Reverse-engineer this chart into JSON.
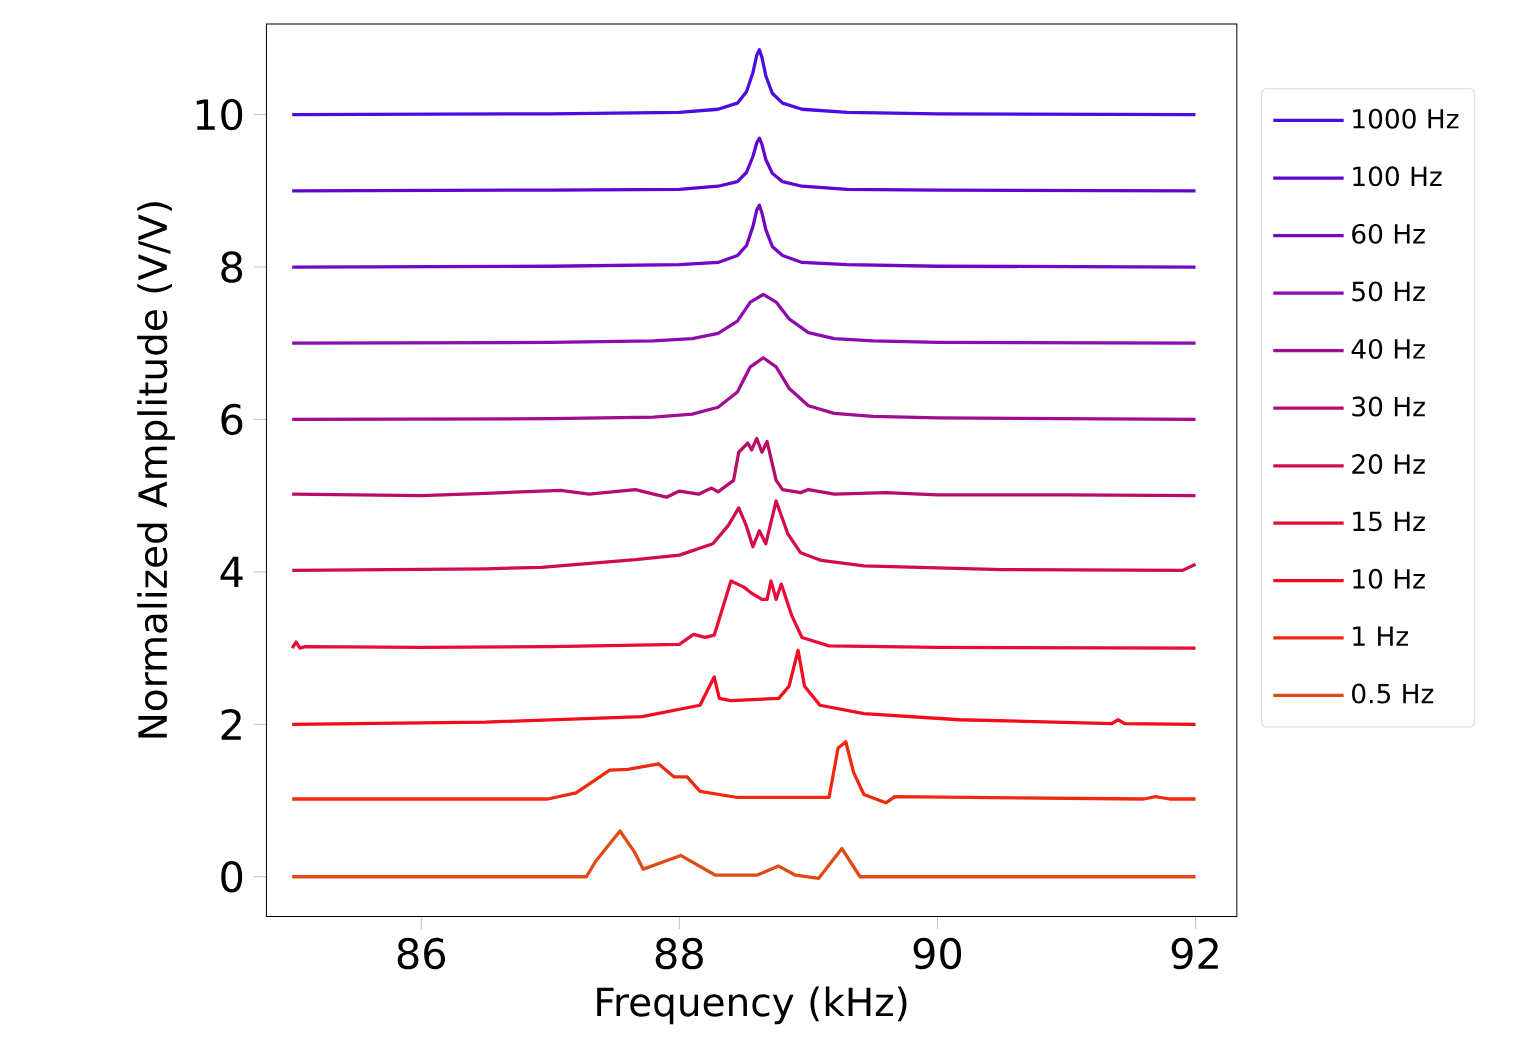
{
  "chart_data": {
    "type": "line",
    "xlabel": "Frequency (kHz)",
    "ylabel": "Normalized Amplitude (V/V)",
    "xlim": [
      84.8,
      92.32
    ],
    "ylim": [
      -0.52,
      11.19
    ],
    "xticks": [
      86,
      88,
      90,
      92
    ],
    "yticks": [
      0,
      2,
      4,
      6,
      8,
      10
    ],
    "legend": "right",
    "grid": false,
    "series": [
      {
        "name": "1000 Hz",
        "color": "#4a0ce0",
        "x": [
          85,
          87,
          88,
          88.3,
          88.45,
          88.52,
          88.57,
          88.6,
          88.62,
          88.64,
          88.67,
          88.72,
          88.8,
          88.95,
          89.3,
          90,
          92
        ],
        "values": [
          10,
          10.01,
          10.03,
          10.07,
          10.15,
          10.3,
          10.55,
          10.78,
          10.85,
          10.75,
          10.51,
          10.28,
          10.15,
          10.07,
          10.03,
          10.01,
          10
        ]
      },
      {
        "name": "100 Hz",
        "color": "#6204d0",
        "x": [
          85,
          87,
          88,
          88.3,
          88.45,
          88.52,
          88.57,
          88.6,
          88.62,
          88.64,
          88.67,
          88.72,
          88.8,
          88.95,
          89.3,
          90,
          92
        ],
        "values": [
          9,
          9.01,
          9.02,
          9.06,
          9.12,
          9.24,
          9.45,
          9.63,
          9.69,
          9.61,
          9.41,
          9.23,
          9.12,
          9.06,
          9.02,
          9.01,
          9
        ]
      },
      {
        "name": "60 Hz",
        "color": "#7406c4",
        "x": [
          85,
          87,
          88,
          88.3,
          88.45,
          88.52,
          88.57,
          88.6,
          88.62,
          88.64,
          88.67,
          88.72,
          88.8,
          88.95,
          89.3,
          90,
          92
        ],
        "values": [
          8,
          8.01,
          8.03,
          8.06,
          8.15,
          8.28,
          8.53,
          8.75,
          8.81,
          8.71,
          8.49,
          8.27,
          8.15,
          8.06,
          8.03,
          8.01,
          8
        ]
      },
      {
        "name": "50 Hz",
        "color": "#8c0cb0",
        "x": [
          85,
          87,
          87.8,
          88.1,
          88.3,
          88.45,
          88.55,
          88.65,
          88.75,
          88.85,
          89.0,
          89.2,
          89.5,
          90,
          92
        ],
        "values": [
          7,
          7.01,
          7.03,
          7.06,
          7.13,
          7.29,
          7.54,
          7.64,
          7.54,
          7.32,
          7.14,
          7.06,
          7.03,
          7.01,
          7
        ]
      },
      {
        "name": "40 Hz",
        "color": "#a00c92",
        "x": [
          85,
          87,
          87.8,
          88.1,
          88.3,
          88.45,
          88.55,
          88.65,
          88.75,
          88.85,
          89.0,
          89.2,
          89.5,
          90,
          92
        ],
        "values": [
          6,
          6.01,
          6.03,
          6.07,
          6.16,
          6.36,
          6.69,
          6.81,
          6.69,
          6.41,
          6.18,
          6.08,
          6.04,
          6.02,
          6
        ]
      },
      {
        "name": "30 Hz",
        "color": "#b80c6a",
        "x": [
          85,
          86,
          86.5,
          87.08,
          87.3,
          87.66,
          87.8,
          87.9,
          88.0,
          88.15,
          88.2,
          88.25,
          88.3,
          88.42,
          88.46,
          88.53,
          88.56,
          88.6,
          88.64,
          88.68,
          88.75,
          88.8,
          88.94,
          89.0,
          89.2,
          89.6,
          90,
          91,
          92
        ],
        "values": [
          5.02,
          5.0,
          5.03,
          5.07,
          5.02,
          5.08,
          5.02,
          4.98,
          5.06,
          5.02,
          5.06,
          5.1,
          5.05,
          5.2,
          5.57,
          5.69,
          5.6,
          5.75,
          5.57,
          5.71,
          5.2,
          5.08,
          5.04,
          5.08,
          5.02,
          5.04,
          5.01,
          5.01,
          5.0
        ]
      },
      {
        "name": "20 Hz",
        "color": "#d20c4c",
        "x": [
          85,
          86.5,
          86.93,
          87.66,
          88.0,
          88.26,
          88.38,
          88.46,
          88.52,
          88.57,
          88.62,
          88.67,
          88.75,
          88.84,
          88.94,
          89.1,
          89.43,
          90.5,
          91.9,
          92
        ],
        "values": [
          4.02,
          4.04,
          4.06,
          4.16,
          4.22,
          4.37,
          4.61,
          4.84,
          4.6,
          4.33,
          4.54,
          4.37,
          4.93,
          4.5,
          4.25,
          4.15,
          4.08,
          4.03,
          4.02,
          4.1
        ]
      },
      {
        "name": "15 Hz",
        "color": "#e80c38",
        "x": [
          85,
          85.03,
          85.06,
          85.1,
          86,
          87,
          88,
          88.11,
          88.2,
          88.27,
          88.4,
          88.5,
          88.56,
          88.64,
          88.68,
          88.71,
          88.75,
          88.79,
          88.87,
          88.95,
          89.16,
          90,
          92
        ],
        "values": [
          3.0,
          3.08,
          3.0,
          3.02,
          3.01,
          3.02,
          3.05,
          3.18,
          3.14,
          3.17,
          3.88,
          3.8,
          3.72,
          3.64,
          3.64,
          3.88,
          3.64,
          3.84,
          3.43,
          3.14,
          3.03,
          3.01,
          3.0
        ]
      },
      {
        "name": "10 Hz",
        "color": "#f40c1c",
        "x": [
          85,
          86.5,
          87.71,
          88.16,
          88.27,
          88.31,
          88.4,
          88.77,
          88.85,
          88.92,
          88.97,
          89.09,
          89.43,
          90.17,
          91.35,
          91.4,
          91.45,
          92
        ],
        "values": [
          2.0,
          2.03,
          2.1,
          2.25,
          2.62,
          2.34,
          2.31,
          2.34,
          2.5,
          2.97,
          2.5,
          2.25,
          2.14,
          2.06,
          2.01,
          2.06,
          2.01,
          2.0
        ]
      },
      {
        "name": "1 Hz",
        "color": "#f02a10",
        "x": [
          85,
          86.98,
          87.2,
          87.46,
          87.6,
          87.84,
          87.96,
          88.06,
          88.16,
          88.45,
          89.16,
          89.23,
          89.29,
          89.35,
          89.43,
          89.6,
          89.67,
          91.6,
          91.69,
          91.8,
          92
        ],
        "values": [
          1.02,
          1.02,
          1.1,
          1.4,
          1.41,
          1.48,
          1.31,
          1.31,
          1.12,
          1.04,
          1.04,
          1.69,
          1.77,
          1.37,
          1.08,
          0.97,
          1.05,
          1.02,
          1.05,
          1.02,
          1.02
        ]
      },
      {
        "name": "0.5 Hz",
        "color": "#e04a14",
        "x": [
          85,
          87.28,
          87.35,
          87.54,
          87.65,
          87.72,
          88.01,
          88.28,
          88.6,
          88.77,
          88.9,
          89.08,
          89.26,
          89.4,
          92
        ],
        "values": [
          0.0,
          0.0,
          0.2,
          0.6,
          0.33,
          0.1,
          0.28,
          0.02,
          0.02,
          0.14,
          0.02,
          -0.02,
          0.37,
          0.0,
          0.0
        ]
      }
    ]
  }
}
